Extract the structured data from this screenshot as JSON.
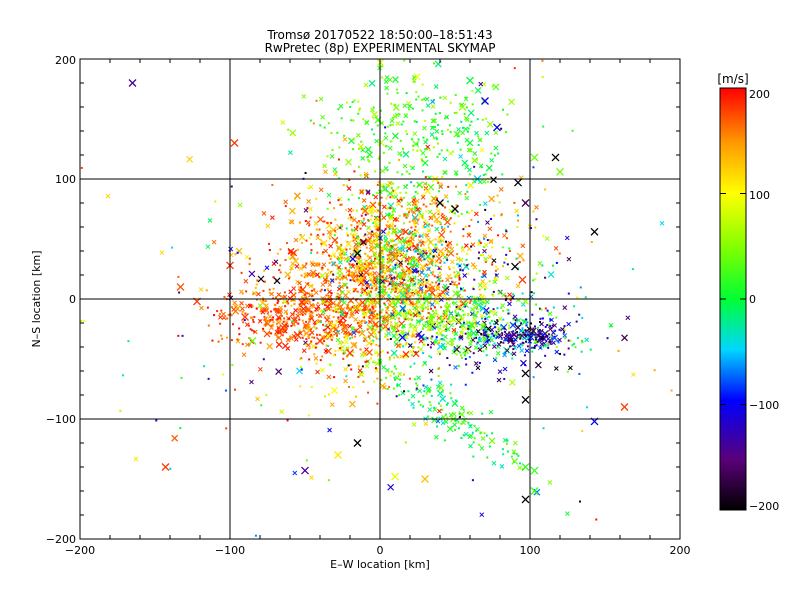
{
  "chart_data": {
    "type": "scatter",
    "title": "Tromsø 20170522 18:50:00–18:51:43",
    "subtitle": "RwPretec (8p) EXPERIMENTAL SKYMAP",
    "xlabel": "E–W location [km]",
    "ylabel": "N–S location [km]",
    "xlim": [
      -200,
      200
    ],
    "ylim": [
      -200,
      200
    ],
    "xticks": [
      "−200",
      "−100",
      "0",
      "100",
      "200"
    ],
    "yticks": [
      "−200",
      "−100",
      "0",
      "100",
      "200"
    ],
    "grid": true,
    "colorbar": {
      "label": "[m/s]",
      "range": [
        -200,
        200
      ],
      "ticks": [
        "200",
        "100",
        "0",
        "−100",
        "−200"
      ]
    },
    "large_markers": [
      {
        "x": -165,
        "y": 180,
        "v": -140
      },
      {
        "x": -97,
        "y": 130,
        "v": 180
      },
      {
        "x": -100,
        "y": 28,
        "v": 180
      },
      {
        "x": -133,
        "y": 10,
        "v": 170
      },
      {
        "x": -122,
        "y": -2,
        "v": 180
      },
      {
        "x": -90,
        "y": -15,
        "v": 180
      },
      {
        "x": -143,
        "y": -140,
        "v": 180
      },
      {
        "x": -50,
        "y": -143,
        "v": -140
      },
      {
        "x": -28,
        "y": -130,
        "v": 110
      },
      {
        "x": -15,
        "y": -120,
        "v": -200
      },
      {
        "x": 10,
        "y": -148,
        "v": 90
      },
      {
        "x": 60,
        "y": 182,
        "v": 0
      },
      {
        "x": 70,
        "y": 165,
        "v": -100
      },
      {
        "x": 55,
        "y": 160,
        "v": 60
      },
      {
        "x": 78,
        "y": 143,
        "v": -100
      },
      {
        "x": 103,
        "y": 118,
        "v": 40
      },
      {
        "x": 117,
        "y": 118,
        "v": -200
      },
      {
        "x": 120,
        "y": 106,
        "v": 40
      },
      {
        "x": 92,
        "y": 97,
        "v": -200
      },
      {
        "x": 97,
        "y": 80,
        "v": -160
      },
      {
        "x": 143,
        "y": 56,
        "v": -200
      },
      {
        "x": 90,
        "y": 27,
        "v": -200
      },
      {
        "x": 95,
        "y": 16,
        "v": 180
      },
      {
        "x": 97,
        "y": -62,
        "v": -200
      },
      {
        "x": 97,
        "y": -84,
        "v": -200
      },
      {
        "x": 143,
        "y": -102,
        "v": -100
      },
      {
        "x": 163,
        "y": -90,
        "v": 180
      },
      {
        "x": 97,
        "y": -167,
        "v": -200
      },
      {
        "x": 103,
        "y": -143,
        "v": 20
      },
      {
        "x": 103,
        "y": -160,
        "v": 20
      },
      {
        "x": 97,
        "y": -140,
        "v": 20
      },
      {
        "x": 30,
        "y": -150,
        "v": 130
      },
      {
        "x": -20,
        "y": -45,
        "v": 180
      },
      {
        "x": 15,
        "y": -32,
        "v": -100
      },
      {
        "x": 65,
        "y": 100,
        "v": -40
      },
      {
        "x": 40,
        "y": 80,
        "v": -200
      },
      {
        "x": 50,
        "y": 75,
        "v": -200
      },
      {
        "x": -15,
        "y": 38,
        "v": -200
      },
      {
        "x": -55,
        "y": -30,
        "v": 180
      },
      {
        "x": -40,
        "y": -35,
        "v": 180
      },
      {
        "x": -85,
        "y": -35,
        "v": 40
      }
    ],
    "clusters": [
      {
        "cx": -10,
        "cy": 15,
        "sx": 35,
        "sy": 22,
        "n": 600,
        "vmin": 120,
        "vmax": 200,
        "rot": 0
      },
      {
        "cx": 10,
        "cy": 35,
        "sx": 18,
        "sy": 30,
        "n": 420,
        "vmin": -60,
        "vmax": 200,
        "rot": 0
      },
      {
        "cx": -55,
        "cy": -15,
        "sx": 30,
        "sy": 12,
        "n": 380,
        "vmin": 140,
        "vmax": 200,
        "rot": 0
      },
      {
        "cx": 15,
        "cy": 60,
        "sx": 40,
        "sy": 22,
        "n": 350,
        "vmin": 100,
        "vmax": 200,
        "rot": 0
      },
      {
        "cx": 70,
        "cy": -30,
        "sx": 35,
        "sy": 14,
        "n": 350,
        "vmin": -200,
        "vmax": 80,
        "rot": 0
      },
      {
        "cx": 40,
        "cy": -15,
        "sx": 28,
        "sy": 12,
        "n": 250,
        "vmin": 0,
        "vmax": 100,
        "rot": 0
      },
      {
        "cx": 15,
        "cy": 130,
        "sx": 30,
        "sy": 35,
        "n": 260,
        "vmin": 0,
        "vmax": 80,
        "rot": 0
      },
      {
        "cx": 50,
        "cy": 135,
        "sx": 18,
        "sy": 25,
        "n": 100,
        "vmin": -20,
        "vmax": 40,
        "rot": 0
      },
      {
        "cx": 40,
        "cy": -90,
        "sx": 40,
        "sy": 8,
        "n": 160,
        "vmin": -40,
        "vmax": 60,
        "rot": -0.75
      },
      {
        "cx": 100,
        "cy": -30,
        "sx": 12,
        "sy": 6,
        "n": 120,
        "vmin": -200,
        "vmax": -60,
        "rot": 0
      },
      {
        "cx": 45,
        "cy": 20,
        "sx": 35,
        "sy": 18,
        "n": 220,
        "vmin": -200,
        "vmax": 200,
        "rot": 0
      },
      {
        "cx": -15,
        "cy": -40,
        "sx": 25,
        "sy": 20,
        "n": 160,
        "vmin": 60,
        "vmax": 200,
        "rot": 0
      },
      {
        "cx": 0,
        "cy": 0,
        "sx": 90,
        "sy": 80,
        "n": 220,
        "vmin": -200,
        "vmax": 200,
        "rot": 0
      }
    ]
  }
}
